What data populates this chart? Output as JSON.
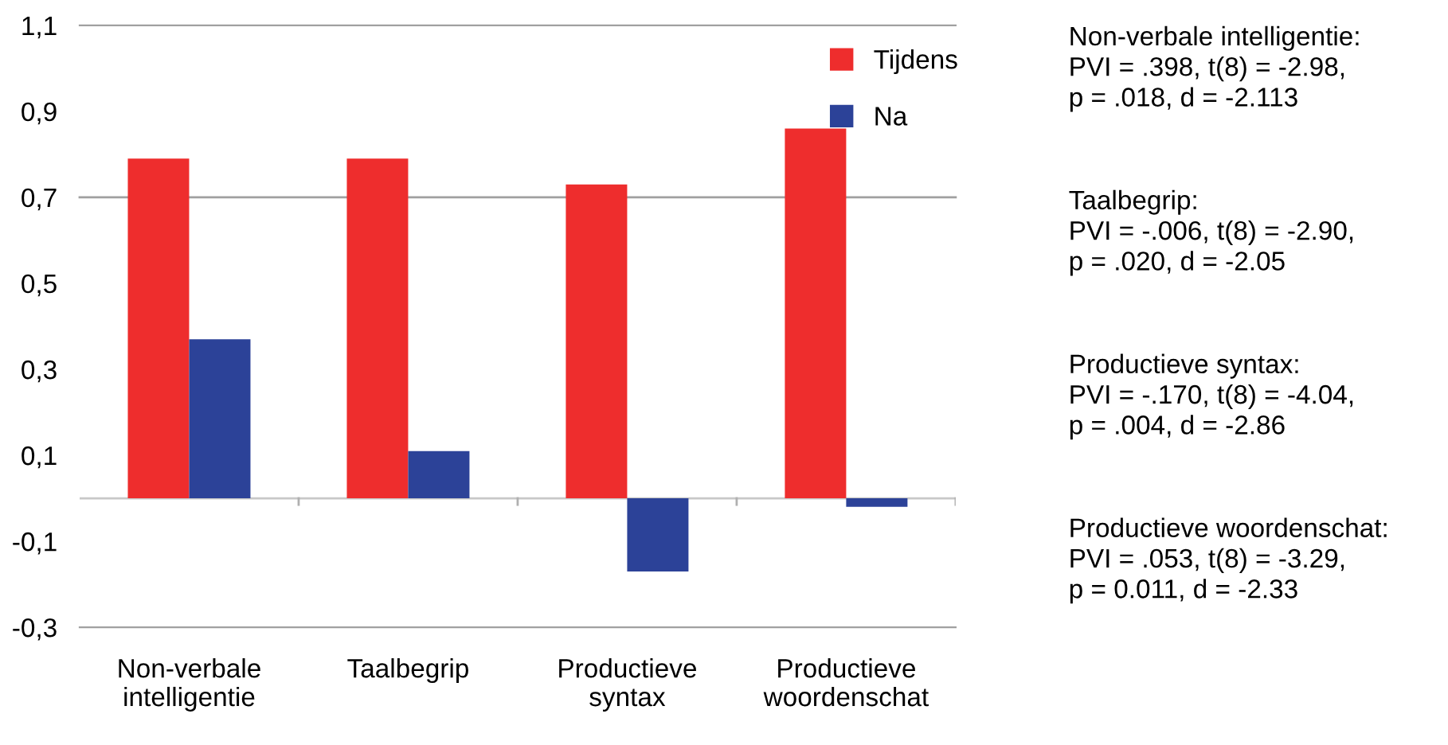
{
  "chart_data": {
    "type": "bar",
    "categories": [
      "Non-verbale\nintelligentie",
      "Taalbegrip",
      "Productieve\nsyntax",
      "Productieve\nwoordenschat"
    ],
    "series": [
      {
        "name": "Tijdens",
        "color": "#ee2d2d",
        "values": [
          0.79,
          0.79,
          0.73,
          0.86
        ]
      },
      {
        "name": "Na",
        "color": "#2c4298",
        "values": [
          0.37,
          0.11,
          -0.17,
          -0.02
        ]
      }
    ],
    "ylim": [
      -0.3,
      1.1
    ],
    "yticks": [
      {
        "value": -0.3,
        "label": "-0,3"
      },
      {
        "value": -0.1,
        "label": "-0,1"
      },
      {
        "value": 0.1,
        "label": "0,1"
      },
      {
        "value": 0.3,
        "label": "0,3"
      },
      {
        "value": 0.5,
        "label": "0,5"
      },
      {
        "value": 0.7,
        "label": "0,7"
      },
      {
        "value": 0.9,
        "label": "0,9"
      },
      {
        "value": 1.1,
        "label": "1,1"
      }
    ],
    "ref_lines": [
      {
        "axis": "y",
        "value": 0.7,
        "color": "#a0a0a0"
      }
    ],
    "grid": false,
    "legend": "top right",
    "annotations": [
      "Non-verbale intelligentie:\nPVI = .398, t(8) = -2.98,\np = .018, d = -2.113",
      "Taalbegrip:\nPVI = -.006, t(8) = -2.90,\np = .020, d = -2.05",
      "Productieve syntax:\nPVI = -.170, t(8) = -4.04,\np = .004, d = -2.86",
      "Productieve woordenschat:\nPVI = .053, t(8) = -3.29,\np = 0.011, d = -2.33"
    ]
  }
}
